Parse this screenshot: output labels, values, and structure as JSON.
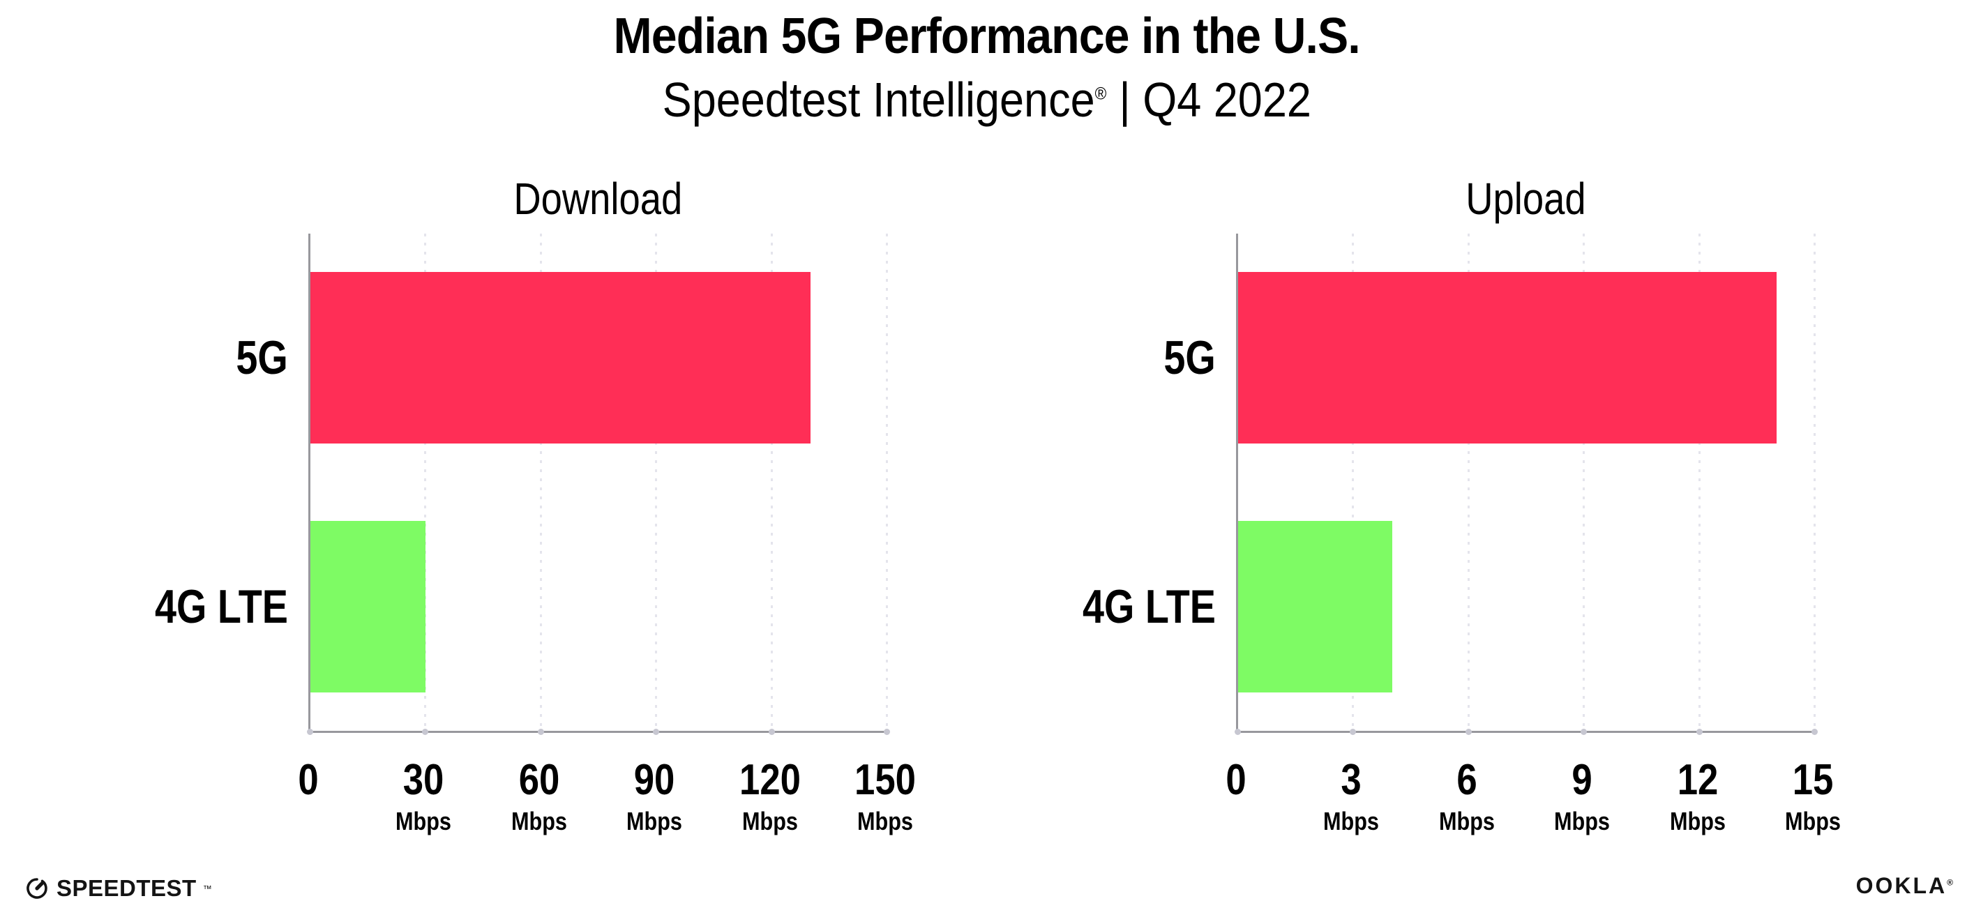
{
  "header": {
    "title": "Median 5G Performance in the U.S.",
    "subtitle_brand": "Speedtest Intelligence",
    "subtitle_reg": "®",
    "subtitle_rest": "| Q4 2022"
  },
  "footer": {
    "speedtest_label": "SPEEDTEST",
    "speedtest_tm": "™",
    "speedtest_icon": "speedtest-gauge-icon",
    "ookla_label": "OOKLA",
    "ookla_reg": "®"
  },
  "colors": {
    "bar_5g": "#FF2E56",
    "bar_4g_lte": "#7EFB64",
    "axis": "#98989D",
    "gridline": "#E4E4EC",
    "tick_dot": "#C7C7D1",
    "text": "#000000"
  },
  "chart_data": [
    {
      "type": "bar",
      "orientation": "horizontal",
      "title": "Download",
      "categories": [
        "5G",
        "4G LTE"
      ],
      "values": [
        130,
        30
      ],
      "unit": "Mbps",
      "xlabel": "",
      "ylabel": "",
      "xlim": [
        0,
        150
      ],
      "xticks": [
        0,
        30,
        60,
        90,
        120,
        150
      ],
      "bar_colors": [
        "#FF2E56",
        "#7EFB64"
      ],
      "grid": "vertical-dotted",
      "legend": "none"
    },
    {
      "type": "bar",
      "orientation": "horizontal",
      "title": "Upload",
      "categories": [
        "5G",
        "4G LTE"
      ],
      "values": [
        14,
        4
      ],
      "unit": "Mbps",
      "xlabel": "",
      "ylabel": "",
      "xlim": [
        0,
        15
      ],
      "xticks": [
        0,
        3,
        6,
        9,
        12,
        15
      ],
      "bar_colors": [
        "#FF2E56",
        "#7EFB64"
      ],
      "grid": "vertical-dotted",
      "legend": "none"
    }
  ]
}
